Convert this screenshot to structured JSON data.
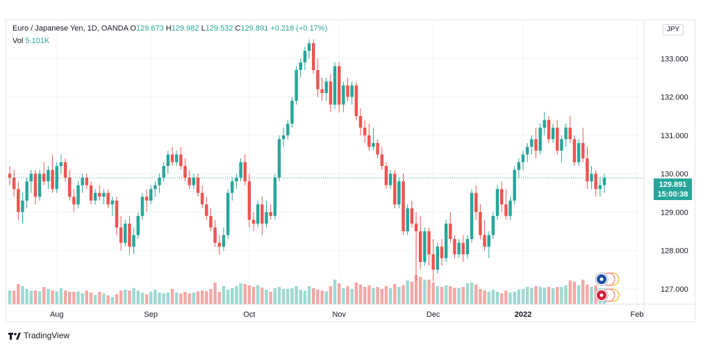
{
  "legend": {
    "symbol": "Euro / Japanese Yen, 1D, OANDA",
    "open_label": "O",
    "open": "129.673",
    "high_label": "H",
    "high": "129.982",
    "low_label": "L",
    "low": "129.532",
    "close_label": "C",
    "close": "129.891",
    "change": "+0.218 (+0.17%)"
  },
  "volume": {
    "label": "Vol",
    "value": "5.101K"
  },
  "currency_button": "JPY",
  "last_price": {
    "price": "129.891",
    "countdown": "15:00:38"
  },
  "branding": {
    "name": "TradingView"
  },
  "colors": {
    "up": "#26a69a",
    "down": "#ef5350",
    "up_volume": "#9dd8d1",
    "down_volume": "#f2a8a6",
    "grid": "#f0f3fa"
  },
  "chart_data": {
    "type": "candlestick",
    "title": "Euro / Japanese Yen, 1D, OANDA",
    "y_ticks": [
      "127.000",
      "128.000",
      "129.000",
      "130.000",
      "131.000",
      "132.000",
      "133.000"
    ],
    "x_ticks": [
      "Aug",
      "Sep",
      "Oct",
      "Nov",
      "Dec",
      "2022",
      "Feb"
    ],
    "ylim": [
      126.6,
      134.0
    ],
    "last_price_line": 129.891,
    "candles": [
      [
        130.0,
        130.2,
        129.7,
        129.9,
        "d"
      ],
      [
        129.9,
        130.1,
        129.4,
        129.6,
        "d"
      ],
      [
        129.6,
        129.8,
        128.8,
        129.0,
        "d"
      ],
      [
        129.0,
        129.5,
        128.7,
        129.3,
        "u"
      ],
      [
        129.3,
        129.9,
        129.1,
        129.8,
        "u"
      ],
      [
        129.8,
        130.1,
        129.5,
        130.0,
        "u"
      ],
      [
        130.0,
        130.1,
        129.2,
        129.4,
        "d"
      ],
      [
        129.4,
        130.1,
        129.3,
        130.0,
        "u"
      ],
      [
        130.0,
        130.3,
        129.7,
        129.8,
        "d"
      ],
      [
        129.8,
        130.2,
        129.6,
        130.1,
        "u"
      ],
      [
        130.1,
        130.5,
        129.5,
        129.6,
        "d"
      ],
      [
        129.6,
        130.3,
        129.5,
        130.2,
        "u"
      ],
      [
        130.2,
        130.5,
        130.0,
        130.3,
        "u"
      ],
      [
        130.3,
        130.4,
        129.8,
        129.9,
        "d"
      ],
      [
        129.9,
        130.1,
        129.3,
        129.4,
        "d"
      ],
      [
        129.4,
        129.6,
        129.0,
        129.2,
        "d"
      ],
      [
        129.2,
        129.8,
        129.1,
        129.7,
        "u"
      ],
      [
        129.7,
        130.0,
        129.5,
        129.9,
        "u"
      ],
      [
        129.9,
        130.0,
        129.6,
        129.7,
        "d"
      ],
      [
        129.7,
        129.8,
        129.2,
        129.3,
        "d"
      ],
      [
        129.3,
        129.6,
        129.2,
        129.5,
        "u"
      ],
      [
        129.5,
        129.7,
        129.3,
        129.4,
        "d"
      ],
      [
        129.4,
        129.6,
        129.2,
        129.5,
        "u"
      ],
      [
        129.5,
        129.6,
        129.1,
        129.2,
        "d"
      ],
      [
        129.2,
        129.4,
        128.9,
        129.3,
        "u"
      ],
      [
        129.3,
        129.4,
        128.4,
        128.6,
        "d"
      ],
      [
        128.6,
        128.9,
        128.0,
        128.2,
        "d"
      ],
      [
        128.2,
        128.8,
        128.1,
        128.7,
        "u"
      ],
      [
        128.7,
        128.9,
        127.9,
        128.1,
        "d"
      ],
      [
        128.1,
        128.6,
        127.9,
        128.4,
        "u"
      ],
      [
        128.4,
        129.0,
        128.3,
        128.9,
        "u"
      ],
      [
        128.9,
        129.5,
        128.8,
        129.4,
        "u"
      ],
      [
        129.4,
        129.6,
        129.0,
        129.3,
        "d"
      ],
      [
        129.3,
        129.7,
        129.2,
        129.6,
        "u"
      ],
      [
        129.6,
        129.8,
        129.4,
        129.7,
        "u"
      ],
      [
        129.7,
        130.0,
        129.5,
        129.9,
        "u"
      ],
      [
        129.9,
        130.3,
        129.8,
        130.2,
        "u"
      ],
      [
        130.2,
        130.6,
        130.0,
        130.5,
        "u"
      ],
      [
        130.5,
        130.7,
        130.2,
        130.3,
        "d"
      ],
      [
        130.3,
        130.6,
        130.2,
        130.5,
        "u"
      ],
      [
        130.5,
        130.7,
        130.1,
        130.2,
        "d"
      ],
      [
        130.2,
        130.4,
        129.8,
        129.9,
        "d"
      ],
      [
        129.9,
        130.1,
        129.6,
        129.7,
        "d"
      ],
      [
        129.7,
        130.0,
        129.6,
        129.9,
        "u"
      ],
      [
        129.9,
        130.0,
        129.4,
        129.5,
        "d"
      ],
      [
        129.5,
        129.7,
        129.1,
        129.2,
        "d"
      ],
      [
        129.2,
        129.4,
        128.8,
        128.9,
        "d"
      ],
      [
        128.9,
        129.1,
        128.5,
        128.6,
        "d"
      ],
      [
        128.6,
        128.8,
        128.1,
        128.2,
        "d"
      ],
      [
        128.2,
        128.4,
        127.9,
        128.1,
        "d"
      ],
      [
        128.1,
        128.6,
        128.0,
        128.4,
        "u"
      ],
      [
        128.4,
        129.6,
        128.3,
        129.5,
        "u"
      ],
      [
        129.5,
        129.9,
        129.3,
        129.8,
        "u"
      ],
      [
        129.8,
        130.0,
        129.6,
        129.9,
        "u"
      ],
      [
        129.9,
        130.4,
        129.8,
        130.3,
        "u"
      ],
      [
        130.3,
        130.5,
        129.7,
        129.8,
        "d"
      ],
      [
        129.8,
        130.0,
        128.6,
        128.8,
        "d"
      ],
      [
        128.8,
        129.0,
        128.5,
        128.7,
        "d"
      ],
      [
        128.7,
        129.3,
        128.6,
        129.2,
        "u"
      ],
      [
        129.2,
        129.4,
        128.4,
        128.7,
        "d"
      ],
      [
        128.7,
        129.3,
        128.6,
        129.0,
        "u"
      ],
      [
        129.0,
        129.2,
        128.8,
        128.9,
        "d"
      ],
      [
        128.9,
        130.0,
        128.8,
        129.9,
        "u"
      ],
      [
        129.9,
        131.0,
        129.8,
        130.9,
        "u"
      ],
      [
        130.9,
        131.2,
        130.7,
        131.0,
        "u"
      ],
      [
        131.0,
        131.4,
        130.9,
        131.3,
        "u"
      ],
      [
        131.3,
        132.0,
        131.2,
        131.9,
        "u"
      ],
      [
        131.9,
        132.8,
        131.8,
        132.7,
        "u"
      ],
      [
        132.7,
        133.0,
        132.5,
        132.9,
        "u"
      ],
      [
        132.9,
        133.3,
        132.7,
        133.2,
        "u"
      ],
      [
        133.2,
        133.5,
        133.0,
        133.4,
        "u"
      ],
      [
        133.4,
        133.5,
        132.6,
        132.7,
        "d"
      ],
      [
        132.7,
        133.0,
        132.0,
        132.2,
        "d"
      ],
      [
        132.2,
        132.5,
        131.9,
        132.1,
        "d"
      ],
      [
        132.1,
        132.5,
        131.9,
        132.4,
        "u"
      ],
      [
        132.4,
        132.6,
        131.6,
        131.8,
        "d"
      ],
      [
        131.8,
        132.9,
        131.7,
        132.8,
        "u"
      ],
      [
        132.8,
        132.9,
        131.6,
        131.8,
        "d"
      ],
      [
        131.8,
        132.4,
        131.6,
        132.3,
        "u"
      ],
      [
        132.3,
        132.5,
        131.9,
        132.0,
        "d"
      ],
      [
        132.0,
        132.4,
        131.8,
        132.3,
        "u"
      ],
      [
        132.3,
        132.4,
        131.4,
        131.5,
        "d"
      ],
      [
        131.5,
        131.7,
        131.0,
        131.2,
        "d"
      ],
      [
        131.2,
        131.4,
        130.8,
        131.0,
        "d"
      ],
      [
        131.0,
        131.3,
        130.6,
        130.7,
        "d"
      ],
      [
        130.7,
        131.2,
        130.6,
        130.8,
        "u"
      ],
      [
        130.8,
        130.9,
        130.4,
        130.5,
        "d"
      ],
      [
        130.5,
        130.7,
        130.1,
        130.2,
        "d"
      ],
      [
        130.2,
        130.3,
        129.6,
        129.7,
        "d"
      ],
      [
        129.7,
        130.1,
        129.6,
        130.0,
        "u"
      ],
      [
        130.0,
        130.1,
        129.1,
        129.2,
        "d"
      ],
      [
        129.2,
        129.9,
        129.1,
        129.8,
        "u"
      ],
      [
        129.8,
        130.0,
        128.4,
        128.5,
        "d"
      ],
      [
        128.5,
        129.2,
        128.4,
        129.1,
        "u"
      ],
      [
        129.1,
        129.3,
        128.6,
        128.7,
        "d"
      ],
      [
        128.7,
        129.0,
        127.2,
        128.5,
        "d"
      ],
      [
        128.5,
        128.9,
        127.5,
        127.7,
        "d"
      ],
      [
        127.7,
        128.6,
        127.6,
        128.5,
        "u"
      ],
      [
        128.5,
        128.6,
        127.6,
        127.9,
        "d"
      ],
      [
        127.9,
        128.3,
        127.2,
        127.5,
        "d"
      ],
      [
        127.5,
        128.2,
        127.4,
        128.1,
        "u"
      ],
      [
        128.1,
        128.3,
        127.6,
        127.8,
        "d"
      ],
      [
        127.8,
        128.8,
        127.7,
        128.7,
        "u"
      ],
      [
        128.7,
        129.0,
        128.2,
        128.3,
        "d"
      ],
      [
        128.3,
        128.4,
        127.8,
        127.9,
        "d"
      ],
      [
        127.9,
        128.3,
        127.8,
        128.2,
        "u"
      ],
      [
        128.2,
        128.4,
        127.7,
        127.9,
        "d"
      ],
      [
        127.9,
        128.4,
        127.8,
        128.3,
        "u"
      ],
      [
        128.3,
        129.6,
        128.2,
        129.5,
        "u"
      ],
      [
        129.5,
        129.7,
        128.8,
        129.0,
        "d"
      ],
      [
        129.0,
        129.2,
        128.3,
        128.4,
        "d"
      ],
      [
        128.4,
        128.8,
        128.0,
        128.1,
        "d"
      ],
      [
        128.1,
        128.5,
        127.8,
        128.4,
        "u"
      ],
      [
        128.4,
        129.0,
        128.3,
        128.9,
        "u"
      ],
      [
        128.9,
        129.7,
        128.8,
        129.6,
        "u"
      ],
      [
        129.6,
        129.8,
        129.0,
        129.2,
        "d"
      ],
      [
        129.2,
        129.6,
        128.8,
        128.9,
        "d"
      ],
      [
        128.9,
        129.4,
        128.8,
        129.3,
        "u"
      ],
      [
        129.3,
        130.2,
        129.2,
        130.1,
        "u"
      ],
      [
        130.1,
        130.4,
        129.9,
        130.3,
        "u"
      ],
      [
        130.3,
        130.6,
        130.1,
        130.5,
        "u"
      ],
      [
        130.5,
        130.8,
        130.3,
        130.7,
        "u"
      ],
      [
        130.7,
        131.0,
        130.5,
        130.9,
        "u"
      ],
      [
        130.9,
        131.2,
        130.4,
        130.6,
        "d"
      ],
      [
        130.6,
        131.3,
        130.5,
        131.2,
        "u"
      ],
      [
        131.2,
        131.6,
        131.0,
        131.4,
        "u"
      ],
      [
        131.4,
        131.5,
        130.8,
        130.9,
        "d"
      ],
      [
        130.9,
        131.3,
        130.8,
        131.2,
        "u"
      ],
      [
        131.2,
        131.4,
        130.5,
        130.6,
        "d"
      ],
      [
        130.6,
        131.0,
        130.3,
        130.9,
        "u"
      ],
      [
        130.9,
        131.3,
        130.7,
        131.2,
        "u"
      ],
      [
        131.2,
        131.5,
        130.8,
        130.9,
        "d"
      ],
      [
        130.9,
        131.0,
        130.2,
        130.3,
        "d"
      ],
      [
        130.3,
        130.9,
        130.2,
        130.8,
        "u"
      ],
      [
        130.8,
        131.2,
        130.3,
        130.4,
        "d"
      ],
      [
        130.4,
        130.7,
        129.6,
        129.8,
        "d"
      ],
      [
        129.8,
        130.2,
        129.6,
        130.0,
        "u"
      ],
      [
        130.0,
        130.1,
        129.4,
        129.6,
        "d"
      ],
      [
        129.6,
        129.9,
        129.4,
        129.7,
        "u"
      ],
      [
        129.7,
        130.0,
        129.5,
        129.9,
        "u"
      ]
    ],
    "volumes": [
      [
        0.34,
        "u"
      ],
      [
        0.34,
        "d"
      ],
      [
        0.5,
        "d"
      ],
      [
        0.45,
        "u"
      ],
      [
        0.38,
        "u"
      ],
      [
        0.34,
        "u"
      ],
      [
        0.34,
        "d"
      ],
      [
        0.32,
        "u"
      ],
      [
        0.43,
        "d"
      ],
      [
        0.38,
        "u"
      ],
      [
        0.34,
        "d"
      ],
      [
        0.32,
        "u"
      ],
      [
        0.4,
        "u"
      ],
      [
        0.34,
        "d"
      ],
      [
        0.31,
        "d"
      ],
      [
        0.31,
        "d"
      ],
      [
        0.32,
        "u"
      ],
      [
        0.27,
        "u"
      ],
      [
        0.34,
        "d"
      ],
      [
        0.29,
        "d"
      ],
      [
        0.23,
        "u"
      ],
      [
        0.31,
        "d"
      ],
      [
        0.27,
        "u"
      ],
      [
        0.22,
        "d"
      ],
      [
        0.18,
        "u"
      ],
      [
        0.25,
        "d"
      ],
      [
        0.34,
        "d"
      ],
      [
        0.36,
        "u"
      ],
      [
        0.34,
        "d"
      ],
      [
        0.4,
        "u"
      ],
      [
        0.34,
        "u"
      ],
      [
        0.29,
        "u"
      ],
      [
        0.25,
        "d"
      ],
      [
        0.31,
        "u"
      ],
      [
        0.36,
        "u"
      ],
      [
        0.29,
        "u"
      ],
      [
        0.27,
        "u"
      ],
      [
        0.29,
        "u"
      ],
      [
        0.38,
        "d"
      ],
      [
        0.29,
        "u"
      ],
      [
        0.27,
        "d"
      ],
      [
        0.31,
        "d"
      ],
      [
        0.27,
        "d"
      ],
      [
        0.29,
        "u"
      ],
      [
        0.32,
        "d"
      ],
      [
        0.34,
        "d"
      ],
      [
        0.32,
        "d"
      ],
      [
        0.38,
        "d"
      ],
      [
        0.54,
        "d"
      ],
      [
        0.31,
        "d"
      ],
      [
        0.45,
        "u"
      ],
      [
        0.36,
        "u"
      ],
      [
        0.4,
        "u"
      ],
      [
        0.45,
        "u"
      ],
      [
        0.52,
        "u"
      ],
      [
        0.5,
        "d"
      ],
      [
        0.47,
        "d"
      ],
      [
        0.43,
        "d"
      ],
      [
        0.47,
        "u"
      ],
      [
        0.41,
        "d"
      ],
      [
        0.36,
        "u"
      ],
      [
        0.31,
        "d"
      ],
      [
        0.4,
        "u"
      ],
      [
        0.43,
        "u"
      ],
      [
        0.38,
        "u"
      ],
      [
        0.38,
        "u"
      ],
      [
        0.4,
        "u"
      ],
      [
        0.45,
        "u"
      ],
      [
        0.36,
        "u"
      ],
      [
        0.34,
        "u"
      ],
      [
        0.45,
        "u"
      ],
      [
        0.4,
        "d"
      ],
      [
        0.36,
        "d"
      ],
      [
        0.34,
        "d"
      ],
      [
        0.32,
        "u"
      ],
      [
        0.45,
        "d"
      ],
      [
        0.61,
        "u"
      ],
      [
        0.52,
        "d"
      ],
      [
        0.4,
        "u"
      ],
      [
        0.45,
        "d"
      ],
      [
        0.38,
        "u"
      ],
      [
        0.54,
        "d"
      ],
      [
        0.49,
        "d"
      ],
      [
        0.43,
        "d"
      ],
      [
        0.47,
        "d"
      ],
      [
        0.4,
        "u"
      ],
      [
        0.43,
        "d"
      ],
      [
        0.38,
        "d"
      ],
      [
        0.45,
        "d"
      ],
      [
        0.4,
        "u"
      ],
      [
        0.5,
        "d"
      ],
      [
        0.43,
        "u"
      ],
      [
        0.47,
        "d"
      ],
      [
        0.59,
        "u"
      ],
      [
        0.56,
        "d"
      ],
      [
        0.72,
        "d"
      ],
      [
        0.68,
        "d"
      ],
      [
        0.61,
        "u"
      ],
      [
        0.61,
        "d"
      ],
      [
        0.54,
        "d"
      ],
      [
        0.45,
        "u"
      ],
      [
        0.43,
        "d"
      ],
      [
        0.47,
        "u"
      ],
      [
        0.45,
        "d"
      ],
      [
        0.41,
        "d"
      ],
      [
        0.4,
        "u"
      ],
      [
        0.43,
        "d"
      ],
      [
        0.52,
        "u"
      ],
      [
        0.54,
        "u"
      ],
      [
        0.49,
        "d"
      ],
      [
        0.38,
        "d"
      ],
      [
        0.34,
        "d"
      ],
      [
        0.31,
        "u"
      ],
      [
        0.36,
        "u"
      ],
      [
        0.31,
        "u"
      ],
      [
        0.27,
        "d"
      ],
      [
        0.34,
        "d"
      ],
      [
        0.29,
        "u"
      ],
      [
        0.31,
        "u"
      ],
      [
        0.36,
        "u"
      ],
      [
        0.38,
        "u"
      ],
      [
        0.43,
        "u"
      ],
      [
        0.41,
        "u"
      ],
      [
        0.45,
        "d"
      ],
      [
        0.43,
        "u"
      ],
      [
        0.41,
        "u"
      ],
      [
        0.43,
        "d"
      ],
      [
        0.4,
        "u"
      ],
      [
        0.43,
        "d"
      ],
      [
        0.43,
        "u"
      ],
      [
        0.47,
        "u"
      ],
      [
        0.59,
        "d"
      ],
      [
        0.56,
        "d"
      ],
      [
        0.47,
        "u"
      ],
      [
        0.61,
        "d"
      ],
      [
        0.49,
        "d"
      ],
      [
        0.43,
        "u"
      ],
      [
        0.47,
        "d"
      ],
      [
        0.4,
        "u"
      ],
      [
        0.4,
        "u"
      ]
    ]
  }
}
